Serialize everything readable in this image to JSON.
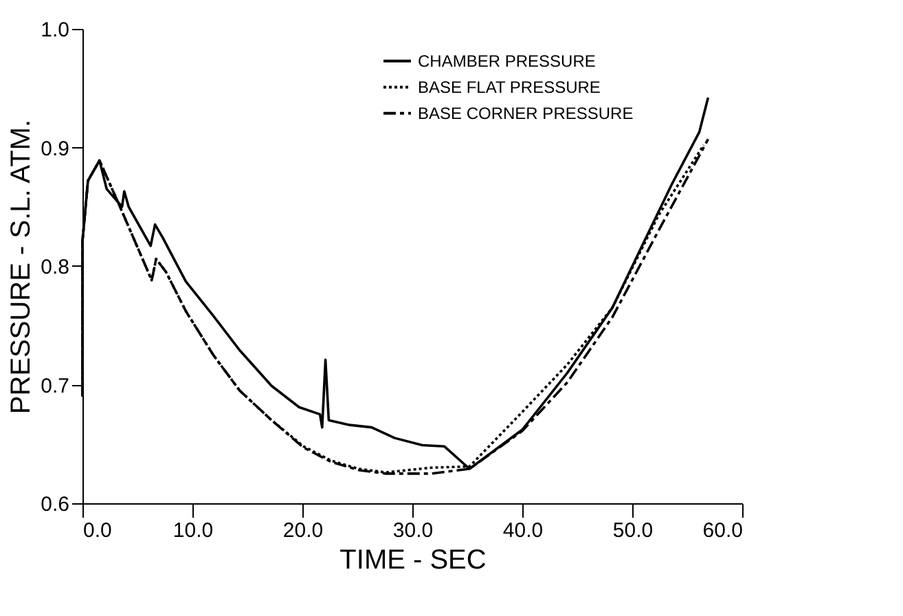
{
  "chart_data": {
    "type": "line",
    "xlabel": "TIME - SEC",
    "ylabel": "PRESSURE - S.L. ATM.",
    "xlim": [
      0,
      60
    ],
    "ylim": [
      0.6,
      1.0
    ],
    "xticks": [
      {
        "value": 0,
        "label": "0.0"
      },
      {
        "value": 10,
        "label": "10.0"
      },
      {
        "value": 20,
        "label": "20.0"
      },
      {
        "value": 30,
        "label": "30.0"
      },
      {
        "value": 40,
        "label": "40.0"
      },
      {
        "value": 50,
        "label": "50.0"
      },
      {
        "value": 60,
        "label": "60.0"
      }
    ],
    "yticks": [
      {
        "value": 0.6,
        "label": "0.6"
      },
      {
        "value": 0.7,
        "label": "0.7"
      },
      {
        "value": 0.8,
        "label": "0.8"
      },
      {
        "value": 0.9,
        "label": "0.9"
      },
      {
        "value": 1.0,
        "label": "1.0"
      }
    ],
    "grid": false,
    "legend": "top right",
    "marker": "none",
    "series": [
      {
        "name": "CHAMBER PRESSURE",
        "color": "#000000",
        "line_style": "solid",
        "x": [
          0,
          0,
          0.5,
          1.55,
          2.2,
          3.6,
          3.8,
          4.2,
          6.2,
          6.6,
          7.3,
          9.4,
          11.9,
          14.3,
          17.2,
          19.7,
          21.6,
          21.8,
          22.1,
          22.4,
          24.3,
          26.3,
          28.4,
          30.9,
          32.9,
          35.2,
          37.1,
          40,
          44.1,
          48.2,
          51.1,
          53.6,
          56.1,
          56.9
        ],
        "values": [
          0.69,
          0.821,
          0.872,
          0.889,
          0.865,
          0.85,
          0.863,
          0.85,
          0.817,
          0.835,
          0.824,
          0.787,
          0.758,
          0.729,
          0.699,
          0.681,
          0.675,
          0.664,
          0.721,
          0.67,
          0.666,
          0.664,
          0.655,
          0.649,
          0.648,
          0.629,
          0.642,
          0.662,
          0.71,
          0.765,
          0.821,
          0.869,
          0.913,
          0.942
        ]
      },
      {
        "name": "BASE FLAT PRESSURE",
        "color": "#000000",
        "line_style": "dotted",
        "x": [
          0,
          0,
          0.5,
          1.55,
          3.6,
          6.3,
          6.7,
          7.6,
          9.4,
          11.9,
          14.3,
          17.2,
          20.1,
          22.6,
          25.1,
          27.6,
          31.7,
          35.2,
          40,
          44.1,
          48.2,
          52.4,
          56.5
        ],
        "values": [
          0.69,
          0.821,
          0.872,
          0.889,
          0.846,
          0.788,
          0.806,
          0.795,
          0.762,
          0.725,
          0.695,
          0.67,
          0.648,
          0.636,
          0.629,
          0.626,
          0.63,
          0.631,
          0.677,
          0.717,
          0.765,
          0.843,
          0.902
        ]
      },
      {
        "name": "BASE CORNER PRESSURE",
        "color": "#000000",
        "line_style": "dashed",
        "x": [
          0,
          0,
          0.5,
          1.55,
          3.6,
          6.3,
          6.7,
          7.6,
          9.4,
          11.9,
          14.3,
          17.2,
          20.1,
          22.6,
          25.1,
          27.6,
          31.7,
          35.2,
          40,
          44.1,
          48.2,
          52.4,
          56.5,
          56.9
        ],
        "values": [
          0.69,
          0.821,
          0.872,
          0.889,
          0.846,
          0.788,
          0.806,
          0.795,
          0.762,
          0.725,
          0.695,
          0.67,
          0.647,
          0.635,
          0.628,
          0.625,
          0.625,
          0.629,
          0.661,
          0.702,
          0.757,
          0.83,
          0.9,
          0.907
        ]
      }
    ]
  }
}
